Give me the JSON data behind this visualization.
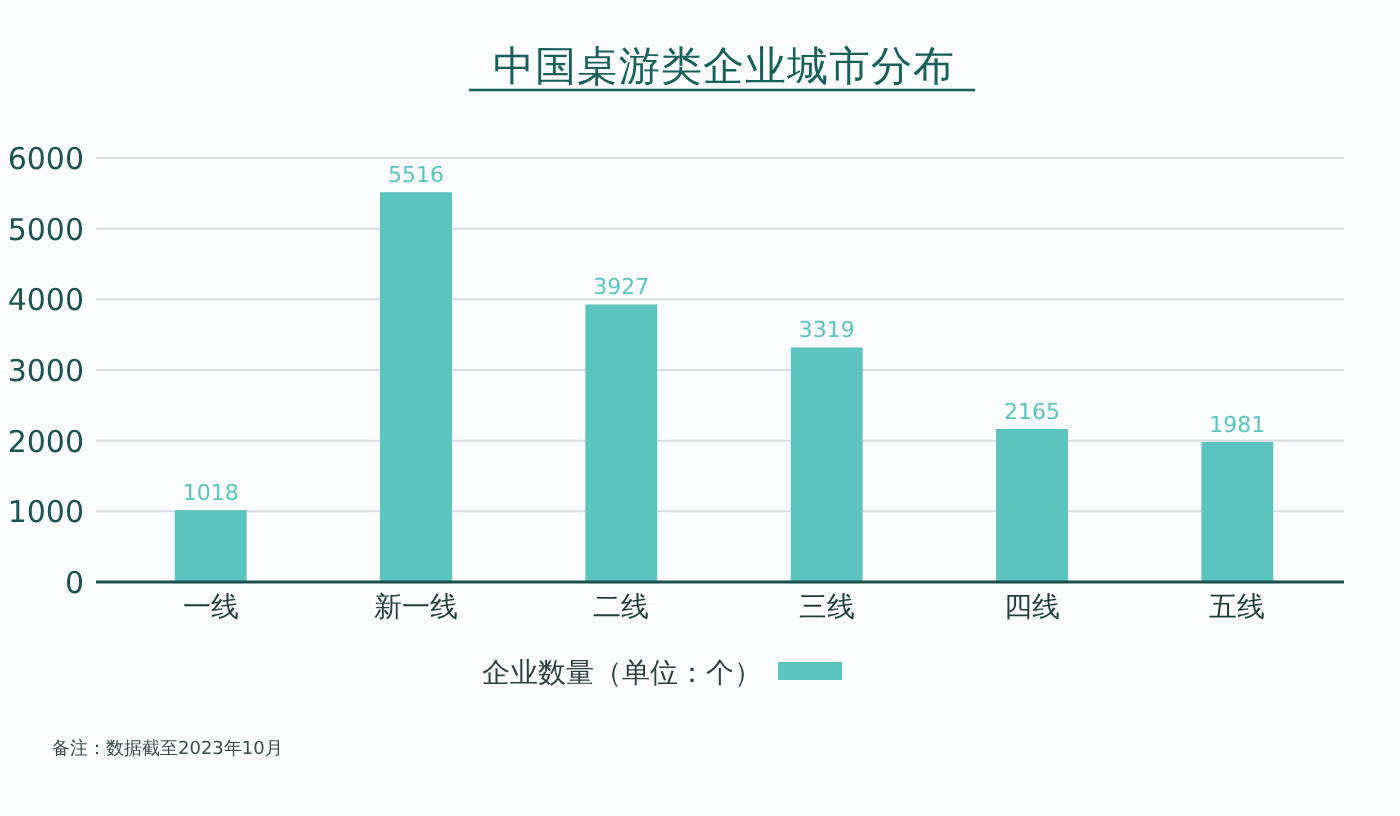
{
  "chart_data": {
    "type": "bar",
    "title": "中国桌游类企业城市分布",
    "categories": [
      "一线",
      "新一线",
      "二线",
      "三线",
      "四线",
      "五线"
    ],
    "series": [
      {
        "name": "企业数量（单位：个）",
        "color": "#5bc4bf",
        "values": [
          1018,
          5516,
          3927,
          3319,
          2165,
          1981
        ]
      }
    ],
    "ylim": [
      0,
      6000
    ],
    "yticks": [
      0,
      1000,
      2000,
      3000,
      4000,
      5000,
      6000
    ],
    "grid": "y",
    "legend": "bottom",
    "data_labels": true,
    "annotations": [
      "备注：数据截至2023年10月"
    ]
  }
}
